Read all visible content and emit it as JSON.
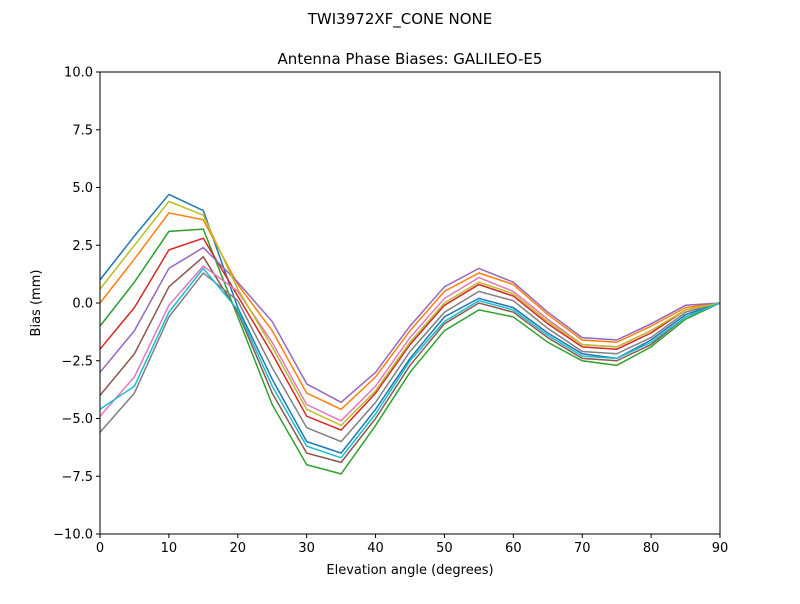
{
  "chart_data": {
    "type": "line",
    "suptitle": "TWI3972XF_CONE  NONE",
    "title": "Antenna Phase Biases: GALILEO-E5",
    "xlabel": "Elevation angle (degrees)",
    "ylabel": "Bias (mm)",
    "xlim": [
      0,
      90
    ],
    "ylim": [
      -10,
      10
    ],
    "xticks": [
      0,
      10,
      20,
      30,
      40,
      50,
      60,
      70,
      80,
      90
    ],
    "xtick_labels": [
      "0",
      "10",
      "20",
      "30",
      "40",
      "50",
      "60",
      "70",
      "80",
      "90"
    ],
    "yticks": [
      -10,
      -7.5,
      -5,
      -2.5,
      0,
      2.5,
      5,
      7.5,
      10
    ],
    "ytick_labels": [
      "−10.0",
      "−7.5",
      "−5.0",
      "−2.5",
      "0.0",
      "2.5",
      "5.0",
      "7.5",
      "10.0"
    ],
    "grid": false,
    "x": [
      0,
      5,
      10,
      15,
      20,
      25,
      30,
      35,
      40,
      45,
      50,
      55,
      60,
      65,
      70,
      75,
      80,
      85,
      90
    ],
    "colors": [
      "#1f77b4",
      "#ff7f0e",
      "#2ca02c",
      "#d62728",
      "#9467bd",
      "#8c564b",
      "#e377c2",
      "#7f7f7f",
      "#bcbd22",
      "#17becf"
    ],
    "series": [
      {
        "name": "s1",
        "values": [
          1.0,
          2.9,
          4.7,
          4.0,
          -0.2,
          -3.3,
          -6.0,
          -6.5,
          -4.6,
          -2.4,
          -0.6,
          0.2,
          -0.2,
          -1.3,
          -2.2,
          -2.4,
          -1.6,
          -0.5,
          0
        ]
      },
      {
        "name": "s2",
        "values": [
          0.0,
          1.9,
          3.9,
          3.6,
          0.8,
          -1.2,
          -3.9,
          -4.6,
          -3.2,
          -1.2,
          0.5,
          1.3,
          0.8,
          -0.5,
          -1.6,
          -1.7,
          -1.0,
          -0.2,
          0
        ]
      },
      {
        "name": "s3",
        "values": [
          -1.0,
          0.9,
          3.1,
          3.2,
          -0.6,
          -4.4,
          -7.0,
          -7.4,
          -5.3,
          -3.0,
          -1.2,
          -0.3,
          -0.6,
          -1.7,
          -2.5,
          -2.7,
          -1.9,
          -0.7,
          0
        ]
      },
      {
        "name": "s4",
        "values": [
          -2.0,
          -0.2,
          2.3,
          2.8,
          0.3,
          -2.2,
          -4.9,
          -5.5,
          -3.9,
          -1.8,
          -0.1,
          0.8,
          0.3,
          -0.9,
          -1.9,
          -2.0,
          -1.3,
          -0.3,
          0
        ]
      },
      {
        "name": "s5",
        "values": [
          -3.0,
          -1.2,
          1.5,
          2.4,
          0.9,
          -0.8,
          -3.5,
          -4.3,
          -3.0,
          -1.0,
          0.7,
          1.5,
          0.9,
          -0.4,
          -1.5,
          -1.6,
          -0.9,
          -0.1,
          0
        ]
      },
      {
        "name": "s6",
        "values": [
          -4.0,
          -2.2,
          0.7,
          2.0,
          -0.4,
          -3.9,
          -6.5,
          -6.9,
          -5.0,
          -2.7,
          -0.9,
          0.0,
          -0.4,
          -1.5,
          -2.4,
          -2.5,
          -1.8,
          -0.6,
          0
        ]
      },
      {
        "name": "s7",
        "values": [
          -4.9,
          -3.2,
          -0.1,
          1.6,
          0.5,
          -1.7,
          -4.4,
          -5.1,
          -3.6,
          -1.5,
          0.2,
          1.1,
          0.5,
          -0.7,
          -1.8,
          -1.9,
          -1.2,
          -0.3,
          0
        ]
      },
      {
        "name": "s8",
        "values": [
          -5.6,
          -3.9,
          -0.6,
          1.3,
          0.1,
          -2.8,
          -5.4,
          -6.0,
          -4.3,
          -2.1,
          -0.4,
          0.5,
          0.1,
          -1.1,
          -2.1,
          -2.2,
          -1.5,
          -0.4,
          0
        ]
      },
      {
        "name": "s9",
        "values": [
          0.6,
          2.5,
          4.4,
          3.8,
          0.6,
          -1.9,
          -4.6,
          -5.3,
          -3.8,
          -1.7,
          0.0,
          0.9,
          0.4,
          -0.8,
          -1.8,
          -1.9,
          -1.2,
          -0.3,
          0
        ]
      },
      {
        "name": "s10",
        "values": [
          -4.6,
          -3.6,
          -0.4,
          1.5,
          -0.3,
          -3.6,
          -6.2,
          -6.7,
          -4.8,
          -2.5,
          -0.8,
          0.1,
          -0.3,
          -1.4,
          -2.3,
          -2.4,
          -1.7,
          -0.6,
          0
        ]
      }
    ]
  }
}
